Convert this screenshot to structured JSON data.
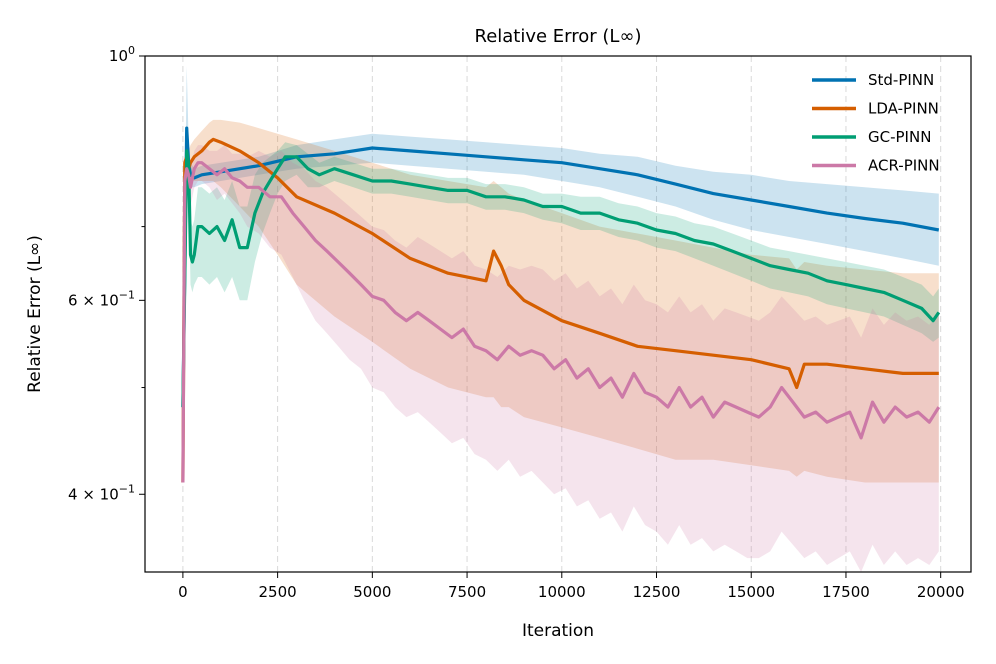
{
  "chart_data": {
    "type": "line",
    "title": "Relative Error (L∞)",
    "xlabel": "Iteration",
    "ylabel": "Relative Error (L∞)",
    "yscale": "log",
    "xlim": [
      -1000,
      20800
    ],
    "ylim": [
      0.34,
      1.0
    ],
    "xticks": [
      0,
      2500,
      5000,
      7500,
      10000,
      12500,
      15000,
      17500,
      20000
    ],
    "yticks_major": [
      {
        "value": 1.0,
        "base": "10",
        "exp": "0"
      },
      {
        "value": 0.6,
        "base": "6 × 10",
        "exp": "−1"
      },
      {
        "value": 0.4,
        "base": "4 × 10",
        "exp": "−1"
      }
    ],
    "yticks_minor": [
      0.7,
      0.5
    ],
    "grid": "vertical dashed",
    "legend": "top-right",
    "series": [
      {
        "name": "Std-PINN",
        "color": "#0072B2",
        "x": [
          0,
          100,
          150,
          200,
          300,
          500,
          1000,
          2000,
          3000,
          4000,
          5000,
          6000,
          7000,
          8000,
          9000,
          10000,
          11000,
          12000,
          13000,
          14000,
          15000,
          16000,
          17000,
          18000,
          19000,
          19950
        ],
        "y": [
          0.48,
          0.86,
          0.8,
          0.78,
          0.775,
          0.78,
          0.785,
          0.795,
          0.81,
          0.815,
          0.825,
          0.82,
          0.815,
          0.81,
          0.805,
          0.8,
          0.79,
          0.78,
          0.765,
          0.75,
          0.74,
          0.73,
          0.72,
          0.712,
          0.705,
          0.695
        ],
        "lower": [
          0.46,
          0.75,
          0.76,
          0.76,
          0.76,
          0.765,
          0.77,
          0.78,
          0.79,
          0.795,
          0.8,
          0.795,
          0.79,
          0.785,
          0.78,
          0.77,
          0.76,
          0.745,
          0.73,
          0.71,
          0.695,
          0.685,
          0.675,
          0.665,
          0.655,
          0.645
        ],
        "upper": [
          0.52,
          0.98,
          0.84,
          0.8,
          0.79,
          0.795,
          0.8,
          0.81,
          0.83,
          0.84,
          0.85,
          0.845,
          0.84,
          0.835,
          0.83,
          0.825,
          0.815,
          0.81,
          0.795,
          0.785,
          0.78,
          0.77,
          0.765,
          0.76,
          0.755,
          0.75
        ]
      },
      {
        "name": "LDA-PINN",
        "color": "#D55E00",
        "x": [
          0,
          50,
          100,
          150,
          200,
          300,
          500,
          700,
          800,
          1000,
          1500,
          2000,
          2500,
          3000,
          4000,
          5000,
          6000,
          7000,
          8000,
          8200,
          8400,
          8600,
          9000,
          10000,
          11000,
          12000,
          13000,
          14000,
          15000,
          16000,
          16200,
          16400,
          17000,
          18000,
          19000,
          19950
        ],
        "y": [
          0.41,
          0.8,
          0.81,
          0.79,
          0.8,
          0.81,
          0.82,
          0.835,
          0.84,
          0.835,
          0.82,
          0.8,
          0.775,
          0.745,
          0.72,
          0.69,
          0.655,
          0.635,
          0.625,
          0.665,
          0.645,
          0.62,
          0.6,
          0.575,
          0.56,
          0.545,
          0.54,
          0.535,
          0.53,
          0.52,
          0.5,
          0.525,
          0.525,
          0.52,
          0.515,
          0.515
        ],
        "lower": [
          0.41,
          0.78,
          0.79,
          0.77,
          0.77,
          0.77,
          0.77,
          0.77,
          0.77,
          0.76,
          0.73,
          0.7,
          0.66,
          0.62,
          0.58,
          0.55,
          0.52,
          0.5,
          0.49,
          0.49,
          0.48,
          0.48,
          0.47,
          0.46,
          0.45,
          0.44,
          0.43,
          0.43,
          0.425,
          0.42,
          0.415,
          0.42,
          0.415,
          0.41,
          0.41,
          0.41
        ],
        "upper": [
          0.42,
          0.82,
          0.83,
          0.82,
          0.83,
          0.84,
          0.855,
          0.87,
          0.875,
          0.875,
          0.87,
          0.86,
          0.85,
          0.84,
          0.82,
          0.8,
          0.78,
          0.77,
          0.76,
          0.77,
          0.76,
          0.75,
          0.74,
          0.72,
          0.7,
          0.69,
          0.68,
          0.67,
          0.66,
          0.655,
          0.64,
          0.65,
          0.645,
          0.64,
          0.635,
          0.635
        ]
      },
      {
        "name": "GC-PINN",
        "color": "#009E73",
        "x": [
          0,
          100,
          150,
          200,
          250,
          300,
          400,
          500,
          700,
          900,
          1100,
          1300,
          1500,
          1700,
          1900,
          2100,
          2300,
          2500,
          2700,
          3000,
          3300,
          3600,
          4000,
          4500,
          5000,
          5500,
          6000,
          6500,
          7000,
          7500,
          8000,
          8500,
          9000,
          9500,
          10000,
          10500,
          11000,
          11500,
          12000,
          12500,
          13000,
          13500,
          14000,
          14500,
          15000,
          15500,
          16000,
          16500,
          17000,
          17500,
          18000,
          18500,
          19000,
          19500,
          19800,
          19950
        ],
        "y": [
          0.48,
          0.82,
          0.8,
          0.66,
          0.65,
          0.66,
          0.7,
          0.7,
          0.69,
          0.7,
          0.68,
          0.71,
          0.67,
          0.67,
          0.72,
          0.75,
          0.77,
          0.79,
          0.81,
          0.81,
          0.79,
          0.78,
          0.79,
          0.78,
          0.77,
          0.77,
          0.765,
          0.76,
          0.755,
          0.755,
          0.745,
          0.745,
          0.74,
          0.73,
          0.73,
          0.72,
          0.72,
          0.71,
          0.705,
          0.695,
          0.69,
          0.68,
          0.675,
          0.665,
          0.655,
          0.645,
          0.64,
          0.635,
          0.625,
          0.62,
          0.615,
          0.61,
          0.6,
          0.59,
          0.575,
          0.585
        ],
        "lower": [
          0.46,
          0.78,
          0.75,
          0.62,
          0.61,
          0.62,
          0.63,
          0.63,
          0.62,
          0.63,
          0.61,
          0.63,
          0.6,
          0.6,
          0.65,
          0.69,
          0.72,
          0.75,
          0.77,
          0.78,
          0.76,
          0.76,
          0.77,
          0.76,
          0.75,
          0.75,
          0.745,
          0.74,
          0.735,
          0.735,
          0.725,
          0.725,
          0.72,
          0.71,
          0.705,
          0.695,
          0.695,
          0.685,
          0.68,
          0.67,
          0.665,
          0.655,
          0.645,
          0.635,
          0.625,
          0.615,
          0.61,
          0.605,
          0.595,
          0.59,
          0.585,
          0.58,
          0.57,
          0.56,
          0.55,
          0.555
        ],
        "upper": [
          0.5,
          0.86,
          0.84,
          0.71,
          0.7,
          0.71,
          0.76,
          0.76,
          0.75,
          0.76,
          0.74,
          0.77,
          0.73,
          0.73,
          0.78,
          0.8,
          0.81,
          0.82,
          0.835,
          0.83,
          0.815,
          0.8,
          0.81,
          0.8,
          0.79,
          0.79,
          0.785,
          0.78,
          0.775,
          0.775,
          0.765,
          0.765,
          0.76,
          0.75,
          0.75,
          0.745,
          0.745,
          0.735,
          0.73,
          0.72,
          0.715,
          0.705,
          0.7,
          0.69,
          0.68,
          0.67,
          0.665,
          0.66,
          0.655,
          0.65,
          0.645,
          0.64,
          0.63,
          0.62,
          0.605,
          0.615
        ]
      },
      {
        "name": "ACR-PINN",
        "color": "#CC79A7",
        "x": [
          0,
          50,
          100,
          150,
          200,
          300,
          400,
          500,
          700,
          900,
          1100,
          1300,
          1500,
          1700,
          2000,
          2300,
          2600,
          2900,
          3200,
          3500,
          3800,
          4100,
          4400,
          4700,
          5000,
          5300,
          5600,
          5900,
          6200,
          6500,
          6800,
          7100,
          7400,
          7700,
          8000,
          8300,
          8600,
          8900,
          9200,
          9500,
          9800,
          10100,
          10400,
          10700,
          11000,
          11300,
          11600,
          11900,
          12200,
          12500,
          12800,
          13100,
          13400,
          13700,
          14000,
          14300,
          14600,
          14900,
          15200,
          15500,
          15800,
          16100,
          16400,
          16700,
          17000,
          17300,
          17600,
          17900,
          18200,
          18500,
          18800,
          19100,
          19400,
          19700,
          19950
        ],
        "y": [
          0.41,
          0.77,
          0.79,
          0.78,
          0.76,
          0.79,
          0.8,
          0.8,
          0.79,
          0.78,
          0.79,
          0.775,
          0.77,
          0.76,
          0.76,
          0.745,
          0.745,
          0.72,
          0.7,
          0.68,
          0.665,
          0.65,
          0.635,
          0.62,
          0.605,
          0.6,
          0.585,
          0.575,
          0.585,
          0.575,
          0.565,
          0.555,
          0.565,
          0.545,
          0.54,
          0.53,
          0.545,
          0.535,
          0.54,
          0.535,
          0.52,
          0.53,
          0.51,
          0.52,
          0.5,
          0.51,
          0.49,
          0.515,
          0.495,
          0.49,
          0.48,
          0.5,
          0.48,
          0.49,
          0.47,
          0.485,
          0.48,
          0.475,
          0.47,
          0.48,
          0.5,
          0.485,
          0.47,
          0.475,
          0.465,
          0.47,
          0.475,
          0.45,
          0.485,
          0.465,
          0.48,
          0.47,
          0.475,
          0.465,
          0.48
        ],
        "lower": [
          0.4,
          0.74,
          0.76,
          0.75,
          0.73,
          0.76,
          0.77,
          0.77,
          0.76,
          0.74,
          0.75,
          0.735,
          0.72,
          0.7,
          0.69,
          0.67,
          0.66,
          0.63,
          0.6,
          0.575,
          0.56,
          0.545,
          0.53,
          0.52,
          0.5,
          0.495,
          0.48,
          0.47,
          0.475,
          0.465,
          0.455,
          0.445,
          0.45,
          0.435,
          0.43,
          0.42,
          0.43,
          0.415,
          0.42,
          0.41,
          0.4,
          0.405,
          0.39,
          0.395,
          0.38,
          0.385,
          0.37,
          0.39,
          0.375,
          0.37,
          0.36,
          0.375,
          0.36,
          0.365,
          0.355,
          0.36,
          0.355,
          0.35,
          0.35,
          0.355,
          0.37,
          0.36,
          0.35,
          0.355,
          0.345,
          0.35,
          0.355,
          0.34,
          0.36,
          0.345,
          0.355,
          0.345,
          0.35,
          0.345,
          0.355
        ],
        "upper": [
          0.42,
          0.8,
          0.82,
          0.81,
          0.79,
          0.82,
          0.83,
          0.83,
          0.82,
          0.82,
          0.83,
          0.815,
          0.815,
          0.81,
          0.82,
          0.81,
          0.82,
          0.8,
          0.79,
          0.77,
          0.76,
          0.745,
          0.73,
          0.715,
          0.7,
          0.695,
          0.68,
          0.67,
          0.685,
          0.675,
          0.665,
          0.655,
          0.665,
          0.645,
          0.64,
          0.63,
          0.645,
          0.64,
          0.645,
          0.64,
          0.625,
          0.635,
          0.615,
          0.625,
          0.605,
          0.615,
          0.595,
          0.62,
          0.6,
          0.595,
          0.585,
          0.605,
          0.585,
          0.595,
          0.575,
          0.59,
          0.585,
          0.58,
          0.575,
          0.585,
          0.605,
          0.59,
          0.575,
          0.58,
          0.57,
          0.575,
          0.58,
          0.555,
          0.59,
          0.57,
          0.585,
          0.575,
          0.58,
          0.57,
          0.585
        ]
      }
    ]
  }
}
